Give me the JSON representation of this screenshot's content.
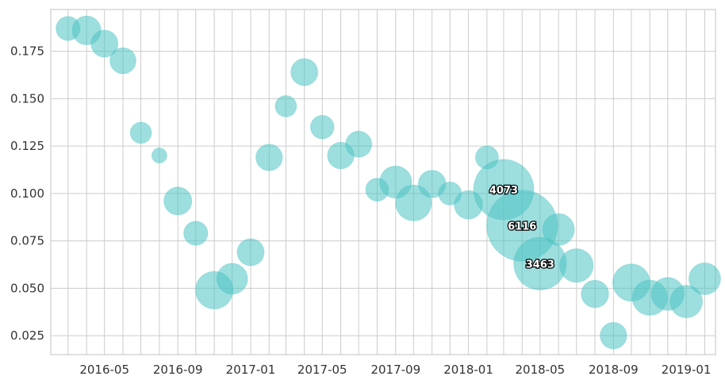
{
  "chart_data": {
    "type": "scatter",
    "title": "",
    "xlabel": "",
    "ylabel": "",
    "xlim": [
      "2016-02-01",
      "2019-02-19"
    ],
    "ylim": [
      0.015,
      0.197
    ],
    "grid": true,
    "point_color": "#4cc3c3",
    "xticks": [
      "2016-05",
      "2016-09",
      "2017-01",
      "2017-05",
      "2017-09",
      "2018-01",
      "2018-05",
      "2018-09",
      "2019-01"
    ],
    "yticks": [
      "0.025",
      "0.050",
      "0.075",
      "0.100",
      "0.125",
      "0.150",
      "0.175"
    ],
    "points": [
      {
        "x": "2016-03",
        "y": 0.187,
        "size": 230,
        "label": ""
      },
      {
        "x": "2016-04",
        "y": 0.186,
        "size": 330,
        "label": ""
      },
      {
        "x": "2016-05",
        "y": 0.179,
        "size": 290,
        "label": ""
      },
      {
        "x": "2016-06",
        "y": 0.17,
        "size": 270,
        "label": ""
      },
      {
        "x": "2016-07",
        "y": 0.132,
        "size": 180,
        "label": ""
      },
      {
        "x": "2016-08",
        "y": 0.12,
        "size": 90,
        "label": ""
      },
      {
        "x": "2016-09",
        "y": 0.096,
        "size": 310,
        "label": ""
      },
      {
        "x": "2016-10",
        "y": 0.079,
        "size": 230,
        "label": ""
      },
      {
        "x": "2016-11",
        "y": 0.049,
        "size": 560,
        "label": ""
      },
      {
        "x": "2016-12",
        "y": 0.055,
        "size": 380,
        "label": ""
      },
      {
        "x": "2017-01",
        "y": 0.069,
        "size": 290,
        "label": ""
      },
      {
        "x": "2017-02",
        "y": 0.119,
        "size": 280,
        "label": ""
      },
      {
        "x": "2017-03",
        "y": 0.146,
        "size": 180,
        "label": ""
      },
      {
        "x": "2017-04",
        "y": 0.164,
        "size": 290,
        "label": ""
      },
      {
        "x": "2017-05",
        "y": 0.135,
        "size": 220,
        "label": ""
      },
      {
        "x": "2017-06",
        "y": 0.12,
        "size": 280,
        "label": ""
      },
      {
        "x": "2017-07",
        "y": 0.126,
        "size": 270,
        "label": ""
      },
      {
        "x": "2017-08",
        "y": 0.102,
        "size": 210,
        "label": ""
      },
      {
        "x": "2017-09",
        "y": 0.106,
        "size": 410,
        "label": ""
      },
      {
        "x": "2017-10",
        "y": 0.095,
        "size": 510,
        "label": ""
      },
      {
        "x": "2017-11",
        "y": 0.105,
        "size": 300,
        "label": ""
      },
      {
        "x": "2017-12",
        "y": 0.1,
        "size": 210,
        "label": ""
      },
      {
        "x": "2018-01",
        "y": 0.094,
        "size": 320,
        "label": ""
      },
      {
        "x": "2018-02",
        "y": 0.119,
        "size": 210,
        "label": ""
      },
      {
        "x": "2018-03",
        "y": 0.102,
        "size": 1450,
        "label": "4073"
      },
      {
        "x": "2018-04",
        "y": 0.083,
        "size": 2000,
        "label": "6116"
      },
      {
        "x": "2018-05",
        "y": 0.063,
        "size": 1100,
        "label": "3463"
      },
      {
        "x": "2018-06",
        "y": 0.081,
        "size": 400,
        "label": ""
      },
      {
        "x": "2018-07",
        "y": 0.062,
        "size": 450,
        "label": ""
      },
      {
        "x": "2018-08",
        "y": 0.047,
        "size": 300,
        "label": ""
      },
      {
        "x": "2018-09",
        "y": 0.025,
        "size": 280,
        "label": ""
      },
      {
        "x": "2018-10",
        "y": 0.053,
        "size": 550,
        "label": ""
      },
      {
        "x": "2018-11",
        "y": 0.045,
        "size": 490,
        "label": ""
      },
      {
        "x": "2018-12",
        "y": 0.047,
        "size": 430,
        "label": ""
      },
      {
        "x": "2019-01",
        "y": 0.043,
        "size": 420,
        "label": ""
      },
      {
        "x": "2019-02",
        "y": 0.055,
        "size": 400,
        "label": ""
      }
    ]
  }
}
